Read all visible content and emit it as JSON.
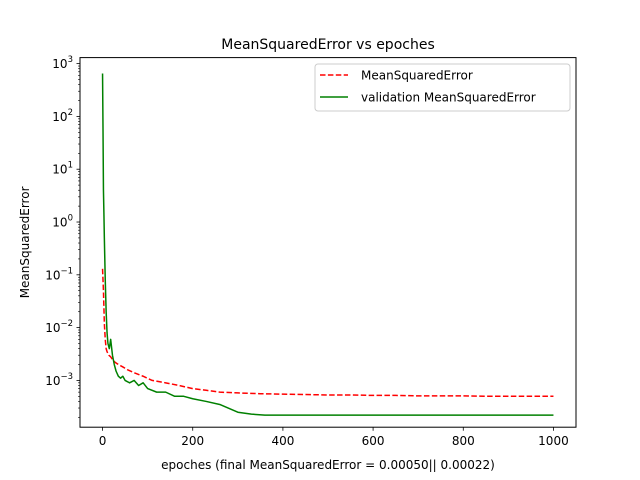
{
  "chart_data": {
    "type": "line",
    "title": "MeanSquaredError vs epoches",
    "xlabel": "epoches (final MeanSquaredError = 0.00050|| 0.00022)",
    "ylabel": "MeanSquaredError",
    "xlim": [
      -50,
      1050
    ],
    "ylim": [
      0.00013,
      1300
    ],
    "yscale": "log",
    "grid": false,
    "legend_position": "top-right",
    "x_ticks": [
      {
        "value": 0,
        "label": "0"
      },
      {
        "value": 200,
        "label": "200"
      },
      {
        "value": 400,
        "label": "400"
      },
      {
        "value": 600,
        "label": "600"
      },
      {
        "value": 800,
        "label": "800"
      },
      {
        "value": 1000,
        "label": "1000"
      }
    ],
    "y_ticks": [
      {
        "value": 0.001,
        "base": "10",
        "exp": "−3"
      },
      {
        "value": 0.01,
        "base": "10",
        "exp": "−2"
      },
      {
        "value": 0.1,
        "base": "10",
        "exp": "−1"
      },
      {
        "value": 1,
        "base": "10",
        "exp": "0"
      },
      {
        "value": 10,
        "base": "10",
        "exp": "1"
      },
      {
        "value": 100,
        "base": "10",
        "exp": "2"
      },
      {
        "value": 1000,
        "base": "10",
        "exp": "3"
      }
    ],
    "series": [
      {
        "name": "MeanSquaredError",
        "color": "#ff0000",
        "style": "dashed",
        "x": [
          0,
          2,
          4,
          6,
          8,
          10,
          14,
          18,
          22,
          28,
          35,
          45,
          55,
          70,
          90,
          110,
          140,
          170,
          200,
          230,
          260,
          300,
          350,
          400,
          450,
          500,
          550,
          600,
          650,
          700,
          750,
          800,
          850,
          900,
          950,
          1000
        ],
        "y": [
          0.13,
          0.05,
          0.012,
          0.006,
          0.004,
          0.0035,
          0.003,
          0.0028,
          0.0025,
          0.0022,
          0.002,
          0.0018,
          0.0016,
          0.0014,
          0.0012,
          0.001,
          0.0009,
          0.0008,
          0.0007,
          0.00065,
          0.0006,
          0.00058,
          0.00056,
          0.00055,
          0.00054,
          0.00053,
          0.00053,
          0.00052,
          0.00052,
          0.00051,
          0.00051,
          0.00051,
          0.0005,
          0.0005,
          0.0005,
          0.0005
        ]
      },
      {
        "name": "validation MeanSquaredError",
        "color": "#008000",
        "style": "solid",
        "x": [
          0,
          1,
          2,
          3,
          4,
          6,
          8,
          10,
          12,
          15,
          18,
          22,
          26,
          30,
          35,
          40,
          45,
          50,
          60,
          70,
          80,
          90,
          100,
          120,
          140,
          160,
          180,
          200,
          230,
          260,
          300,
          330,
          360,
          400,
          500,
          600,
          700,
          800,
          900,
          1000
        ],
        "y": [
          650,
          60,
          4,
          1.5,
          0.5,
          0.08,
          0.02,
          0.008,
          0.005,
          0.004,
          0.006,
          0.003,
          0.002,
          0.0015,
          0.0012,
          0.0011,
          0.0012,
          0.001,
          0.0009,
          0.001,
          0.0008,
          0.0009,
          0.0007,
          0.0006,
          0.0006,
          0.0005,
          0.0005,
          0.00045,
          0.0004,
          0.00035,
          0.00025,
          0.00023,
          0.00022,
          0.00022,
          0.00022,
          0.00022,
          0.00022,
          0.00022,
          0.00022,
          0.00022
        ]
      }
    ]
  }
}
